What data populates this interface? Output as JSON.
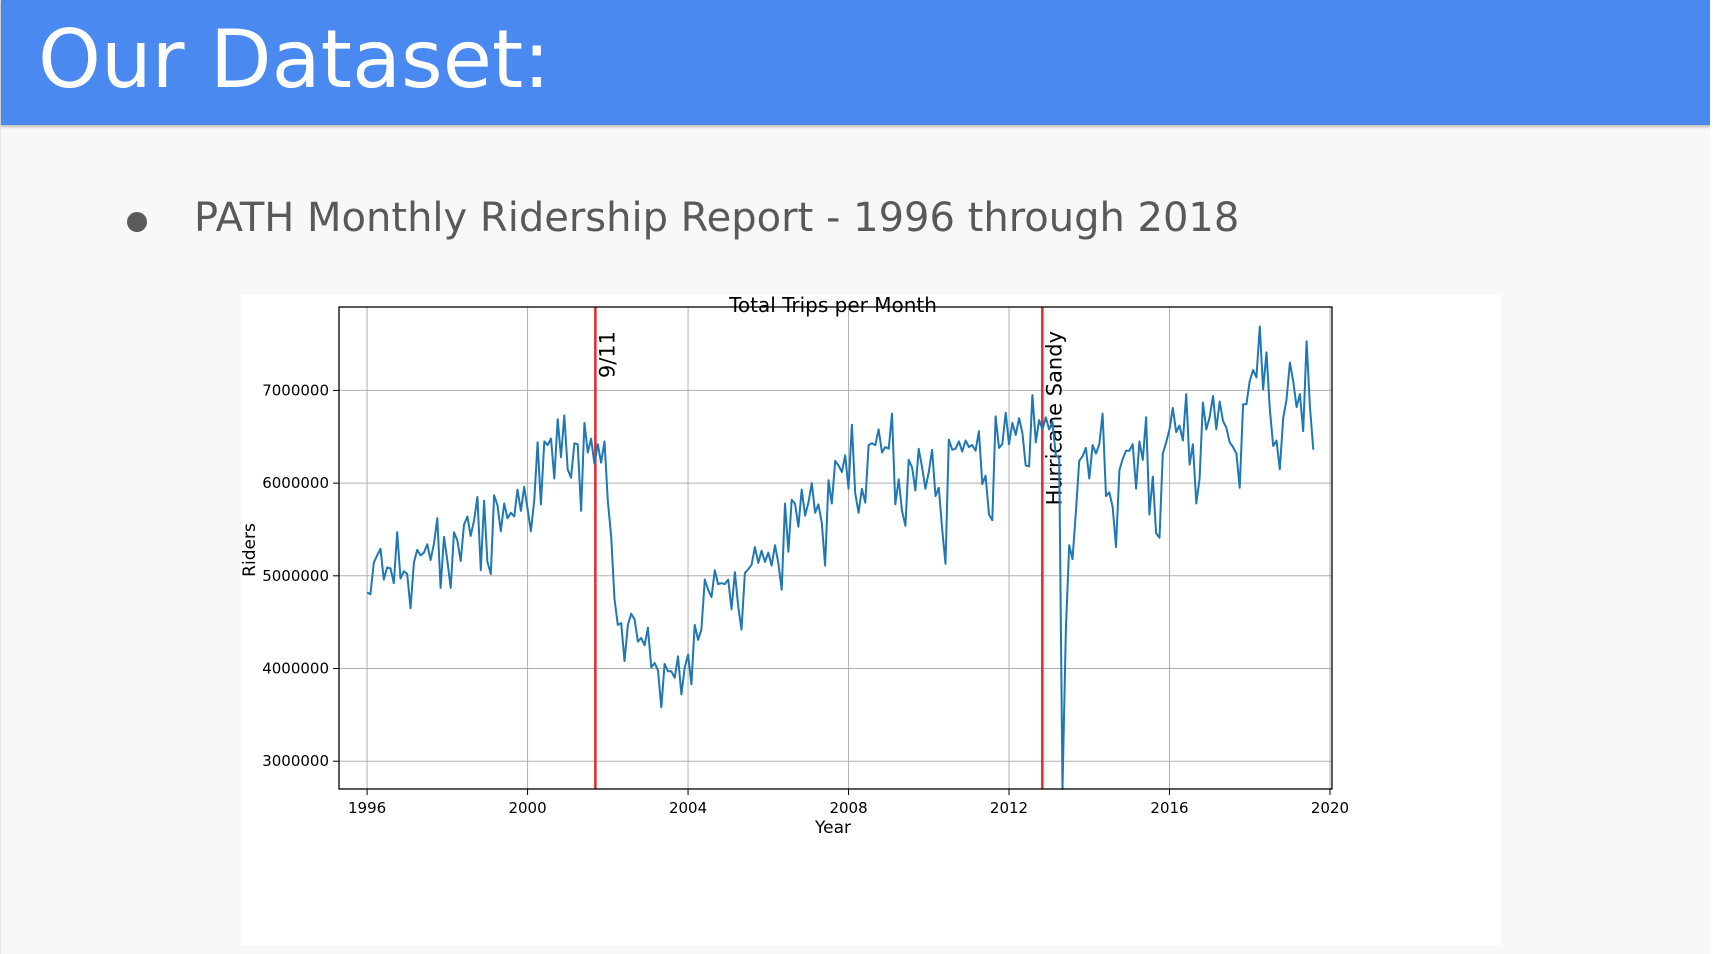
{
  "header": {
    "title": "Our Dataset:"
  },
  "bullets": [
    {
      "text": "PATH Monthly Ridership Report - 1996 through 2018"
    }
  ],
  "colors": {
    "header_bg": "#4a89ef",
    "line": "#1f77b4",
    "event_line": "#e8262b",
    "grid": "#b0b0b0"
  },
  "chart_data": {
    "type": "line",
    "title": "Total Trips per Month",
    "xlabel": "Year",
    "ylabel": "Riders",
    "xlim": [
      1995.3,
      2020.05
    ],
    "ylim": [
      2700000,
      7900000
    ],
    "grid": true,
    "x_ticks": [
      1996,
      2000,
      2004,
      2008,
      2012,
      2016,
      2020
    ],
    "x_tick_labels": [
      "1996",
      "2000",
      "2004",
      "2008",
      "2012",
      "2016",
      "2020"
    ],
    "y_ticks": [
      3000000,
      4000000,
      5000000,
      6000000,
      7000000
    ],
    "y_tick_labels": [
      "3000000",
      "4000000",
      "5000000",
      "6000000",
      "7000000"
    ],
    "annotations": [
      {
        "label": "9/11",
        "x": 2001.69
      },
      {
        "label": "Hurricane Sandy",
        "x": 2012.83
      }
    ],
    "series": [
      {
        "x_start": 1996.0,
        "x_step": 0.083333,
        "values": [
          4820000,
          4800000,
          5140000,
          5220000,
          5290000,
          4960000,
          5090000,
          5080000,
          4920000,
          5470000,
          4970000,
          5050000,
          5020000,
          4650000,
          5140000,
          5280000,
          5220000,
          5250000,
          5340000,
          5170000,
          5350000,
          5620000,
          4870000,
          5420000,
          5170000,
          4870000,
          5470000,
          5380000,
          5160000,
          5550000,
          5640000,
          5430000,
          5600000,
          5850000,
          5060000,
          5810000,
          5150000,
          5020000,
          5870000,
          5760000,
          5480000,
          5780000,
          5620000,
          5680000,
          5640000,
          5930000,
          5700000,
          5960000,
          5720000,
          5480000,
          5820000,
          6440000,
          5770000,
          6450000,
          6410000,
          6480000,
          6050000,
          6690000,
          6280000,
          6730000,
          6150000,
          6060000,
          6430000,
          6420000,
          5700000,
          6650000,
          6330000,
          6480000,
          6210000,
          6420000,
          6220000,
          6450000,
          5810000,
          5420000,
          4750000,
          4470000,
          4490000,
          4080000,
          4470000,
          4590000,
          4530000,
          4290000,
          4330000,
          4250000,
          4440000,
          4010000,
          4060000,
          3980000,
          3580000,
          4050000,
          3970000,
          3970000,
          3900000,
          4130000,
          3720000,
          4010000,
          4150000,
          3830000,
          4470000,
          4310000,
          4420000,
          4960000,
          4850000,
          4770000,
          5060000,
          4910000,
          4920000,
          4910000,
          4960000,
          4640000,
          5040000,
          4670000,
          4420000,
          5030000,
          5070000,
          5120000,
          5310000,
          5140000,
          5270000,
          5150000,
          5250000,
          5110000,
          5330000,
          5140000,
          4850000,
          5780000,
          5260000,
          5820000,
          5780000,
          5530000,
          5930000,
          5650000,
          5790000,
          6000000,
          5680000,
          5770000,
          5570000,
          5110000,
          6030000,
          5780000,
          6240000,
          6190000,
          6120000,
          6300000,
          5940000,
          6630000,
          5890000,
          5680000,
          5940000,
          5790000,
          6410000,
          6430000,
          6410000,
          6580000,
          6330000,
          6390000,
          6370000,
          6750000,
          5770000,
          6040000,
          5700000,
          5540000,
          6250000,
          6170000,
          5920000,
          6370000,
          6170000,
          5940000,
          6120000,
          6360000,
          5860000,
          5950000,
          5500000,
          5130000,
          6470000,
          6360000,
          6370000,
          6450000,
          6340000,
          6460000,
          6390000,
          6410000,
          6350000,
          6560000,
          5990000,
          6080000,
          5660000,
          5600000,
          6720000,
          6380000,
          6420000,
          6760000,
          6420000,
          6650000,
          6520000,
          6700000,
          6540000,
          6190000,
          6180000,
          6950000,
          6440000,
          6680000,
          6580000,
          6710000,
          6580000,
          6660000,
          6300000,
          6270000,
          2600000,
          4430000,
          5330000,
          5180000,
          5690000,
          6240000,
          6290000,
          6380000,
          6050000,
          6410000,
          6320000,
          6420000,
          6750000,
          5860000,
          5900000,
          5740000,
          5310000,
          6140000,
          6260000,
          6350000,
          6350000,
          6420000,
          5940000,
          6450000,
          6250000,
          6710000,
          5660000,
          6070000,
          5460000,
          5410000,
          6320000,
          6440000,
          6580000,
          6810000,
          6550000,
          6620000,
          6460000,
          6960000,
          6200000,
          6420000,
          5780000,
          6050000,
          6870000,
          6580000,
          6710000,
          6940000,
          6580000,
          6880000,
          6670000,
          6600000,
          6440000,
          6390000,
          6320000,
          5950000,
          6850000,
          6850000,
          7100000,
          7220000,
          7140000,
          7690000,
          7010000,
          7410000,
          6800000,
          6400000,
          6460000,
          6150000,
          6700000,
          6900000,
          7300000,
          7100000,
          6820000,
          6960000,
          6560000,
          7530000,
          6830000,
          6360000
        ]
      }
    ]
  }
}
